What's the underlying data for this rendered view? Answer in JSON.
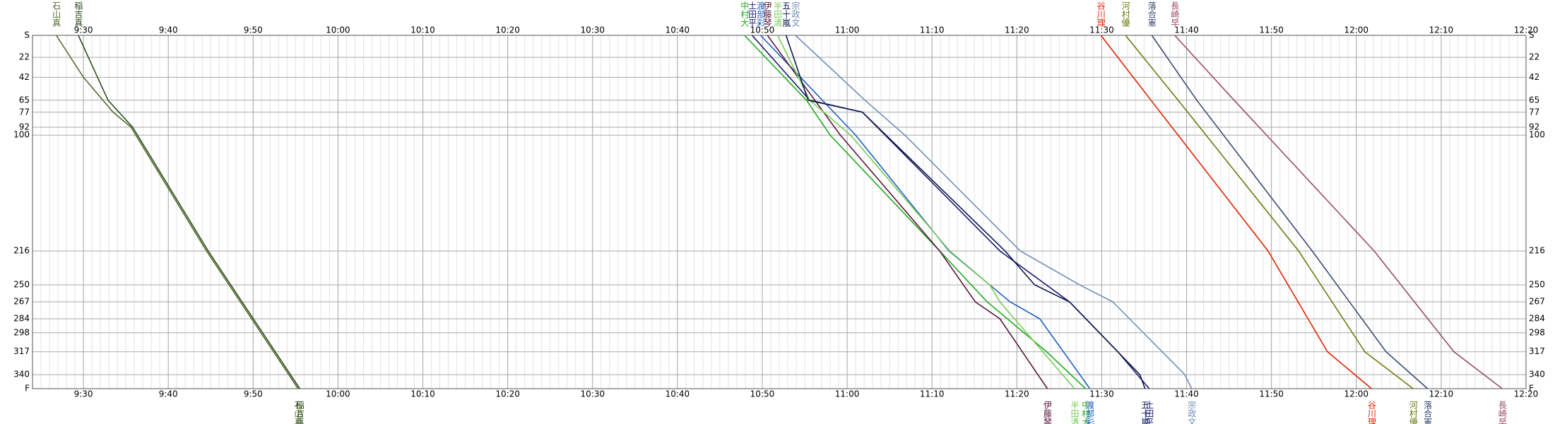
{
  "chart_data": {
    "type": "line",
    "xlim": [
      564,
      740
    ],
    "xticks": [
      {
        "value": 570,
        "label": "9:30"
      },
      {
        "value": 580,
        "label": "9:40"
      },
      {
        "value": 590,
        "label": "9:50"
      },
      {
        "value": 600,
        "label": "10:00"
      },
      {
        "value": 610,
        "label": "10:10"
      },
      {
        "value": 620,
        "label": "10:20"
      },
      {
        "value": 630,
        "label": "10:30"
      },
      {
        "value": 640,
        "label": "10:40"
      },
      {
        "value": 650,
        "label": "10:50"
      },
      {
        "value": 660,
        "label": "11:00"
      },
      {
        "value": 670,
        "label": "11:10"
      },
      {
        "value": 680,
        "label": "11:20"
      },
      {
        "value": 690,
        "label": "11:30"
      },
      {
        "value": 700,
        "label": "11:40"
      },
      {
        "value": 710,
        "label": "11:50"
      },
      {
        "value": 720,
        "label": "12:00"
      },
      {
        "value": 730,
        "label": "12:10"
      },
      {
        "value": 740,
        "label": "12:20"
      }
    ],
    "ylim": [
      0,
      354
    ],
    "y_reversed": true,
    "grid": true,
    "yticks": [
      {
        "value": 0,
        "label": "S"
      },
      22,
      42,
      65,
      77,
      92,
      100,
      216,
      250,
      267,
      284,
      298,
      317,
      340,
      {
        "value": 354,
        "label": "F"
      }
    ],
    "series": [
      {
        "name": "石山真",
        "color": "#556b2f",
        "x": [
          566.8,
          570.0,
          573.5,
          575.6,
          584.5,
          595.3
        ],
        "values": [
          0,
          42,
          77,
          92,
          216,
          354
        ]
      },
      {
        "name": "稲吉真",
        "color": "#2e4e1e",
        "x": [
          569.4,
          572.9,
          575.8,
          584.7,
          595.5
        ],
        "values": [
          0,
          65,
          92,
          216,
          354
        ]
      },
      {
        "name": "中村大",
        "color": "#22aa22",
        "x": [
          647.9,
          655.2,
          658.0,
          670.9,
          676.5,
          683.5,
          688.1
        ],
        "values": [
          0,
          65,
          100,
          216,
          267,
          317,
          354
        ]
      },
      {
        "name": "土田平",
        "color": "#1a1a6e",
        "x": [
          648.8,
          655.6,
          661.8,
          678.0,
          686.2,
          691.9,
          695.6
        ],
        "values": [
          0,
          65,
          77,
          216,
          267,
          317,
          354
        ]
      },
      {
        "name": "渡部彩",
        "color": "#1f5fbf",
        "x": [
          649.8,
          661.0,
          672.0,
          679.2,
          682.7,
          688.6
        ],
        "values": [
          0,
          100,
          216,
          267,
          284,
          354
        ]
      },
      {
        "name": "伊藤琴",
        "color": "#5a1a3a",
        "x": [
          650.6,
          659.2,
          670.9,
          675.1,
          678.0,
          683.6
        ],
        "values": [
          0,
          100,
          216,
          267,
          284,
          354
        ]
      },
      {
        "name": "半田清",
        "color": "#77cc55",
        "x": [
          651.8,
          655.6,
          660.4,
          672.1,
          676.8,
          678.0,
          686.8
        ],
        "values": [
          0,
          65,
          100,
          216,
          250,
          267,
          354
        ]
      },
      {
        "name": "五十嵐",
        "color": "#0d1a4d",
        "x": [
          652.8,
          655.4,
          661.8,
          678.6,
          682.1,
          686.2,
          694.5,
          695.1
        ],
        "values": [
          0,
          65,
          77,
          216,
          250,
          267,
          340,
          354
        ]
      },
      {
        "name": "宗政文",
        "color": "#6f8fb5",
        "x": [
          653.9,
          662.1,
          666.8,
          680.4,
          687.4,
          691.3,
          699.8,
          700.6
        ],
        "values": [
          0,
          65,
          100,
          216,
          250,
          267,
          340,
          354
        ]
      },
      {
        "name": "谷川理",
        "color": "#dd2200",
        "x": [
          689.9,
          695.8,
          709.6,
          716.6,
          721.8
        ],
        "values": [
          0,
          65,
          216,
          317,
          354
        ]
      },
      {
        "name": "河村優",
        "color": "#6b7a10",
        "x": [
          692.8,
          699.0,
          713.2,
          721.0,
          726.7
        ],
        "values": [
          0,
          65,
          216,
          317,
          354
        ]
      },
      {
        "name": "落合憲",
        "color": "#3a4a70",
        "x": [
          695.9,
          701.2,
          714.8,
          723.5,
          728.4
        ],
        "values": [
          0,
          65,
          216,
          317,
          354
        ]
      },
      {
        "name": "長崎早",
        "color": "#9a4a6a",
        "x": [
          698.6,
          705.6,
          722.1,
          731.5,
          737.2
        ],
        "values": [
          0,
          65,
          216,
          317,
          354
        ]
      }
    ]
  }
}
